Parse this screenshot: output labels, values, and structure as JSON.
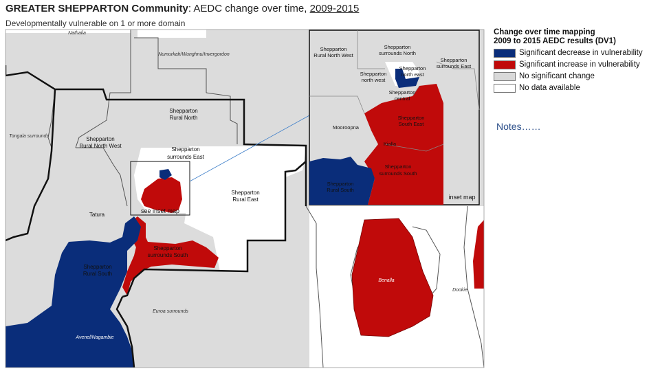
{
  "header": {
    "title_bold": "GREATER SHEPPARTON Community",
    "title_sep": ": AEDC change over time, ",
    "title_years": "2009-2015",
    "subtitle": "Developmentally vulnerable on 1 or more domain"
  },
  "legend": {
    "title_line1": "Change over time mapping",
    "title_line2": "2009 to 2015 AEDC results (DV1)",
    "items": [
      {
        "label": "Significant decrease in vulnerability",
        "color": "#0a2d7a"
      },
      {
        "label": "Significant increase in vulnerability",
        "color": "#c00a0a"
      },
      {
        "label": "No significant change",
        "color": "#d9d9d9"
      },
      {
        "label": "No data available",
        "color": "#ffffff"
      }
    ]
  },
  "notes": "Notes……",
  "map": {
    "labels": {
      "rural_north_1": "Shepparton",
      "rural_north_2": "Rural North",
      "rural_nw_1": "Shepparton",
      "rural_nw_2": "Rural North West",
      "surrounds_east_1": "Shepparton",
      "surrounds_east_2": "surrounds East",
      "rural_east_1": "Shepparton",
      "rural_east_2": "Rural East",
      "tatura": "Tatura",
      "see_inset": "see inset map",
      "surrounds_south_1": "Shepparton",
      "surrounds_south_2": "surrounds South",
      "rural_south_1": "Shepparton",
      "rural_south_2": "Rural South",
      "nathalia": "Nathalia",
      "numurkah": "Numurkah/Wunghnu/Invergordon",
      "tongala": "Tongala surrounds",
      "euroa": "Euroa surrounds",
      "benalla": "Benalla",
      "dookie": "Dookie",
      "avenel": "Avenel/Nagambie"
    },
    "inset": {
      "rural_nw_1": "Shepparton",
      "rural_nw_2": "Rural North West",
      "surrounds_north_1": "Shepparton",
      "surrounds_north_2": "surrounds North",
      "surrounds_east_1": "Shepparton",
      "surrounds_east_2": "surrounds East",
      "north_west_1": "Shepparton",
      "north_west_2": "north west",
      "north_east_1": "Shepparton",
      "north_east_2": "north east",
      "central_1": "Shepparton",
      "central_2": "central",
      "south_east_1": "Shepparton",
      "south_east_2": "South East",
      "mooroopna": "Mooroopna",
      "kialla": "Kialla",
      "surrounds_south_1": "Shepparton",
      "surrounds_south_2": "surrounds South",
      "rural_south_1": "Shepparton",
      "rural_south_2": "Rural South",
      "caption": "inset map"
    }
  }
}
